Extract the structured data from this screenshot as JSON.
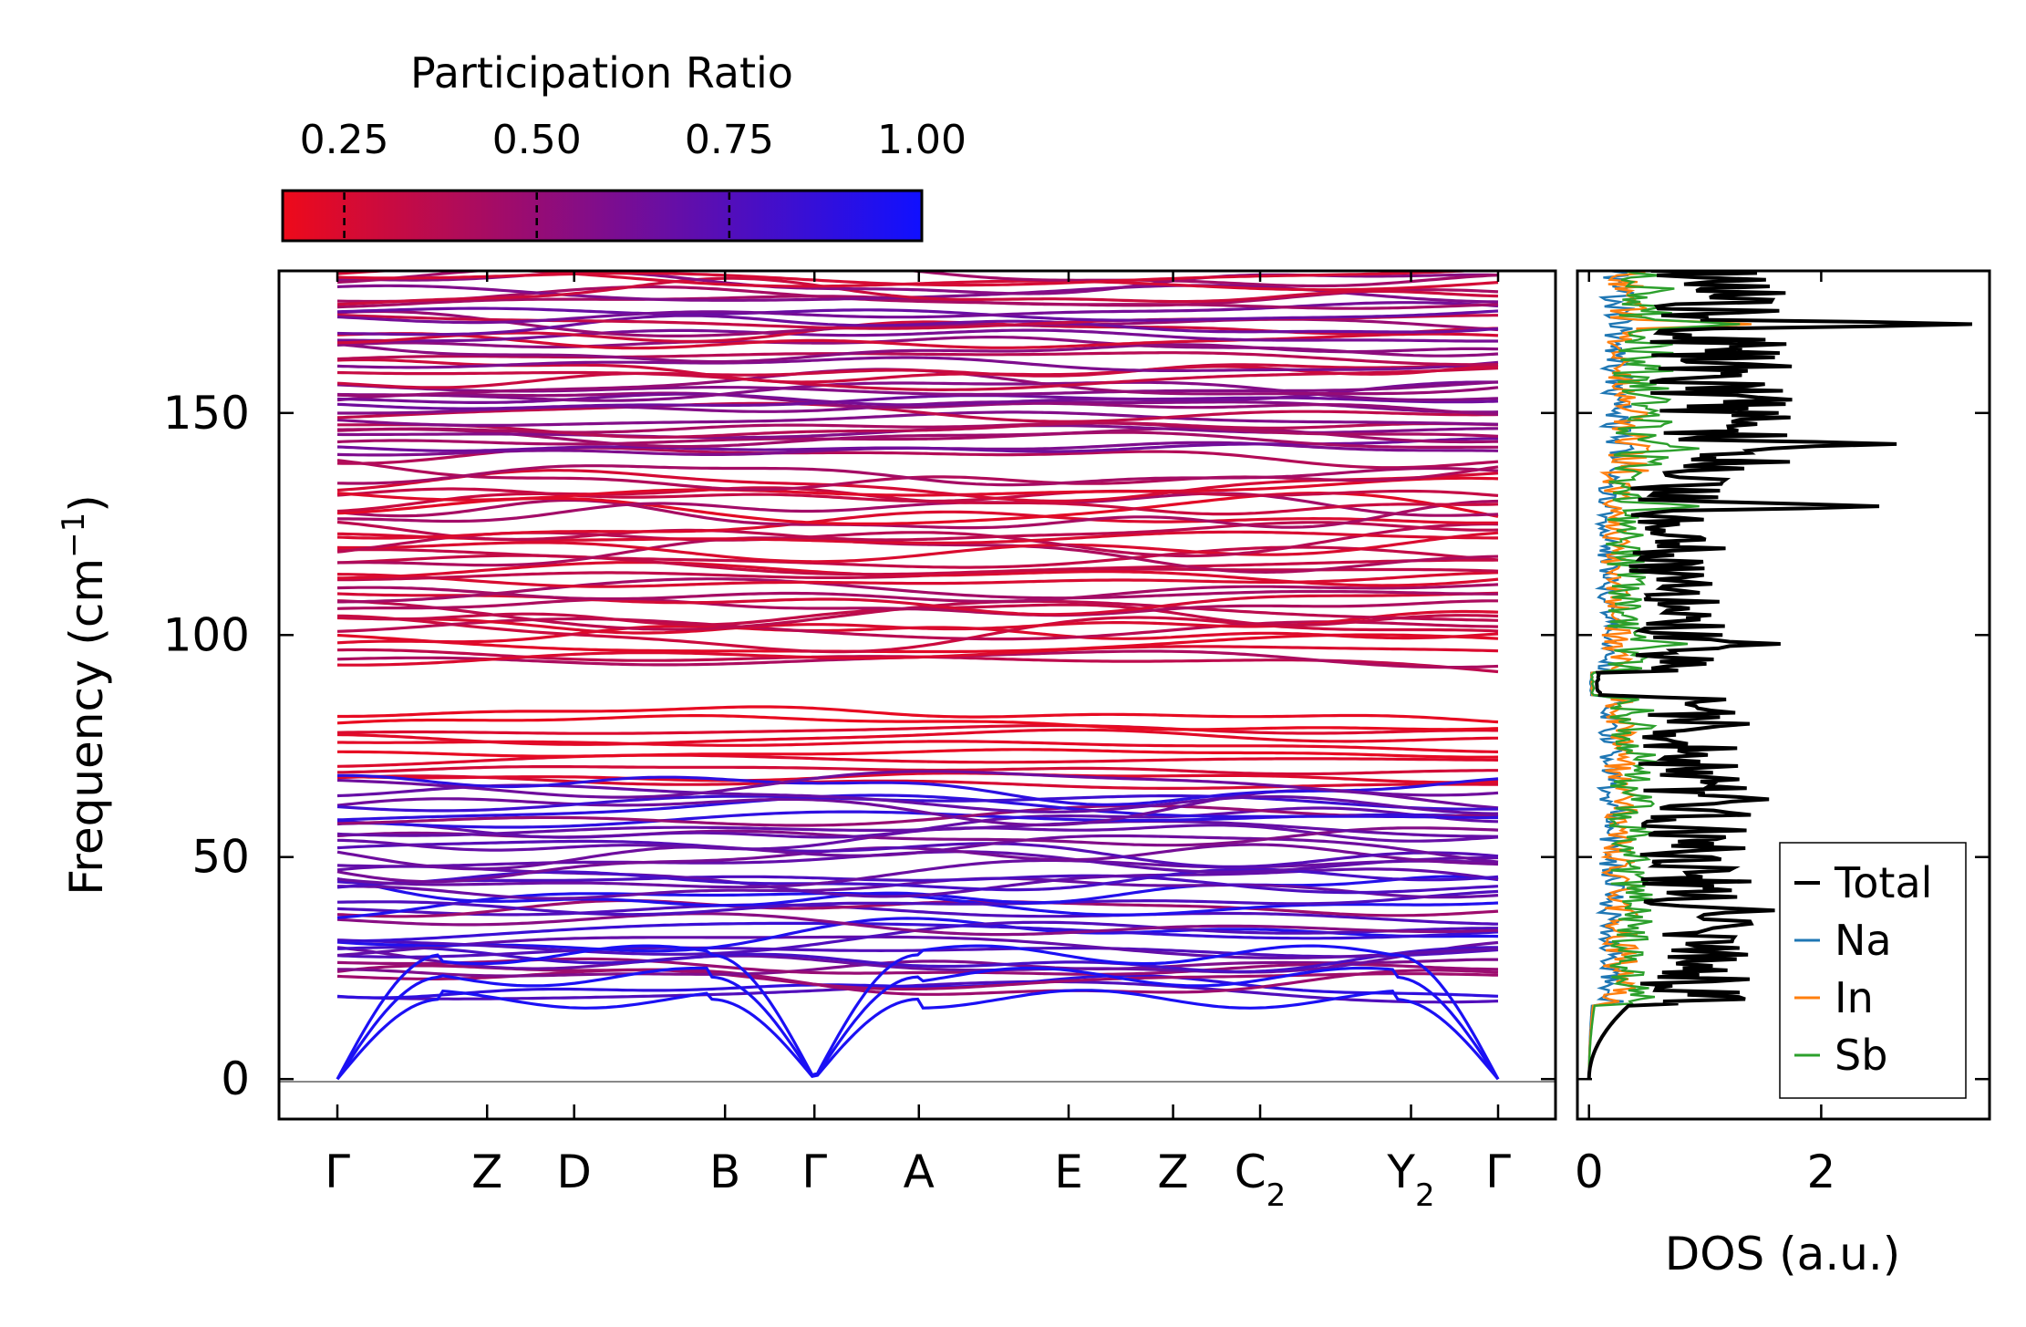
{
  "chart_data": [
    {
      "type": "colorbar",
      "title": "Participation Ratio",
      "range": [
        0.17,
        1.0
      ],
      "ticks": [
        0.25,
        0.5,
        0.75,
        1.0
      ],
      "tick_labels": [
        "0.25",
        "0.50",
        "0.75",
        "1.00"
      ],
      "colors": [
        "#ee0a1a",
        "#1010ff"
      ]
    },
    {
      "type": "line",
      "subtype": "phonon-band-structure",
      "ylabel": "Frequency (cm",
      "ylabel_sup": "−1",
      "ylabel_end": ")",
      "ylim": [
        -9,
        182
      ],
      "yticks": [
        0,
        50,
        100,
        150
      ],
      "ytick_labels": [
        "0",
        "50",
        "100",
        "150"
      ],
      "kpath": [
        {
          "label": "Γ",
          "sub": "",
          "pos": 0.0
        },
        {
          "label": "Z",
          "sub": "",
          "pos": 0.129
        },
        {
          "label": "D",
          "sub": "",
          "pos": 0.204
        },
        {
          "label": "B",
          "sub": "",
          "pos": 0.334
        },
        {
          "label": "Γ",
          "sub": "",
          "pos": 0.411
        },
        {
          "label": "A",
          "sub": "",
          "pos": 0.501
        },
        {
          "label": "E",
          "sub": "",
          "pos": 0.63
        },
        {
          "label": "Z",
          "sub": "",
          "pos": 0.72
        },
        {
          "label": "C",
          "sub": "2",
          "pos": 0.795
        },
        {
          "label": "Y",
          "sub": "2",
          "pos": 0.925
        },
        {
          "label": "Γ",
          "sub": "",
          "pos": 1.0
        }
      ],
      "acoustic_zero_at": [
        "Γ",
        "Γ",
        "Γ"
      ],
      "band_clusters": [
        {
          "range": [
            17,
            66
          ],
          "participation": "mixed, mostly high (blue)"
        },
        {
          "range": [
            66,
            84
          ],
          "participation": "low (red)"
        },
        {
          "range": [
            92,
            137
          ],
          "participation": "low-medium (red)"
        },
        {
          "range": [
            137,
            182
          ],
          "participation": "mixed (purple/red)"
        }
      ],
      "zero_line": 0
    },
    {
      "type": "line",
      "subtype": "density-of-states",
      "xlabel": "DOS (a.u.)",
      "xlim": [
        -0.1,
        3.45
      ],
      "xticks": [
        0,
        2
      ],
      "xtick_labels": [
        "0",
        "2"
      ],
      "ylim": [
        -9,
        182
      ],
      "series": [
        {
          "name": "Total",
          "color": "#000000",
          "peak_at": [
            [
              170,
              3.3
            ],
            [
              143,
              2.65
            ],
            [
              129,
              2.5
            ],
            [
              63,
              1.55
            ],
            [
              38,
              1.6
            ],
            [
              98,
              1.65
            ]
          ]
        },
        {
          "name": "Na",
          "color": "#1f77b4",
          "peak_at": [
            [
              138,
              0.3
            ],
            [
              85,
              0.3
            ],
            [
              75,
              0.4
            ]
          ]
        },
        {
          "name": "In",
          "color": "#ff7f0e",
          "peak_at": [
            [
              170,
              1.4
            ],
            [
              142,
              0.5
            ]
          ]
        },
        {
          "name": "Sb",
          "color": "#2ca02c",
          "peak_at": [
            [
              170,
              1.3
            ],
            [
              142,
              0.95
            ],
            [
              129,
              0.95
            ],
            [
              98,
              0.85
            ]
          ]
        }
      ],
      "legend": "lower-right"
    }
  ]
}
